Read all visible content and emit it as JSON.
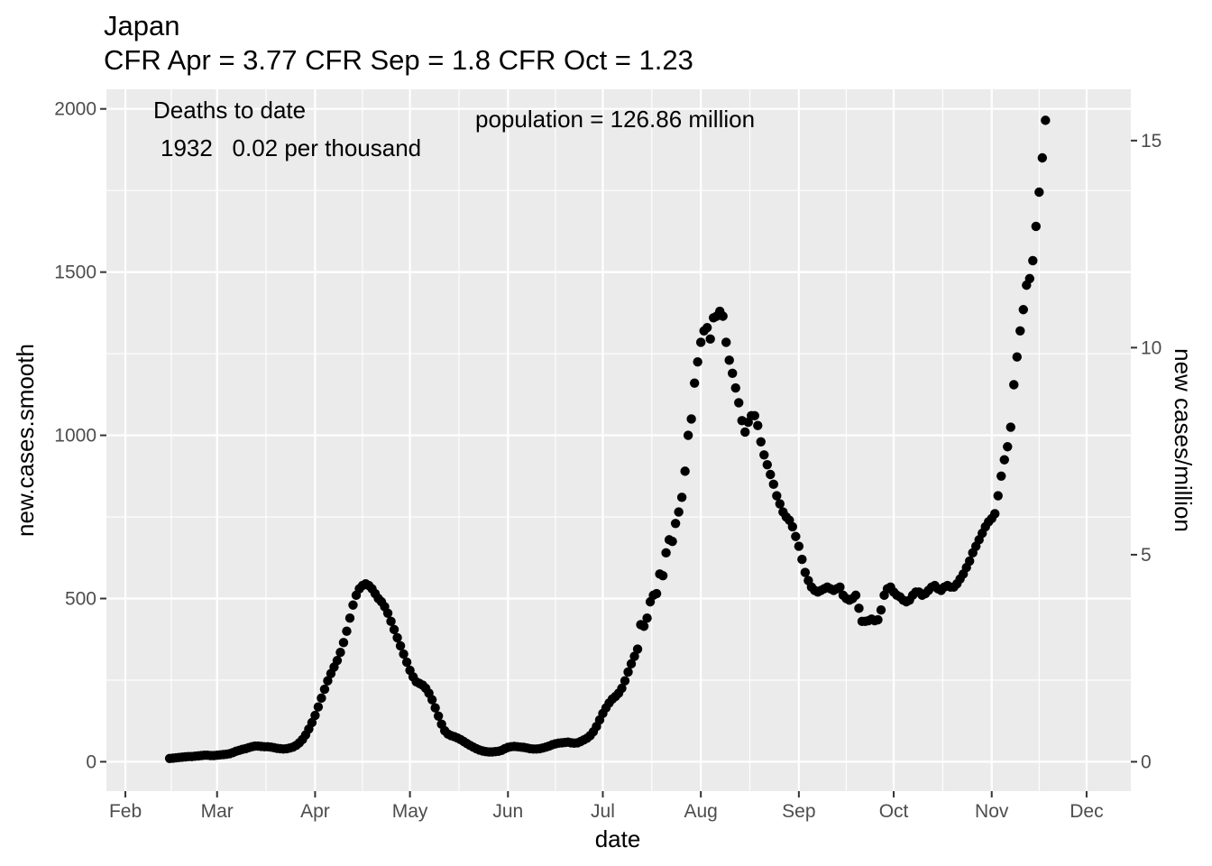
{
  "chart_data": {
    "type": "scatter",
    "title": "Japan",
    "subtitle": "CFR Apr = 3.77  CFR Sep = 1.8  CFR Oct = 1.23",
    "xlabel": "date",
    "ylabel": "new.cases.smooth",
    "y2label": "new cases/million",
    "annotations": {
      "deaths_title": "Deaths to date",
      "deaths_value": "1932   0.02 per thousand",
      "population": "population = 126.86 million"
    },
    "x_ticks": [
      {
        "date": "2020-02-01",
        "label": "Feb"
      },
      {
        "date": "2020-03-01",
        "label": "Mar"
      },
      {
        "date": "2020-04-01",
        "label": "Apr"
      },
      {
        "date": "2020-05-01",
        "label": "May"
      },
      {
        "date": "2020-06-01",
        "label": "Jun"
      },
      {
        "date": "2020-07-01",
        "label": "Jul"
      },
      {
        "date": "2020-08-01",
        "label": "Aug"
      },
      {
        "date": "2020-09-01",
        "label": "Sep"
      },
      {
        "date": "2020-10-01",
        "label": "Oct"
      },
      {
        "date": "2020-11-01",
        "label": "Nov"
      },
      {
        "date": "2020-12-01",
        "label": "Dec"
      }
    ],
    "y_ticks": [
      {
        "value": 0,
        "label": "0"
      },
      {
        "value": 500,
        "label": "500"
      },
      {
        "value": 1000,
        "label": "1000"
      },
      {
        "value": 1500,
        "label": "1500"
      },
      {
        "value": 2000,
        "label": "2000"
      }
    ],
    "y2_ticks": [
      {
        "value": 0,
        "label": "0"
      },
      {
        "value": 5,
        "label": "5"
      },
      {
        "value": 10,
        "label": "10"
      },
      {
        "value": 15,
        "label": "15"
      }
    ],
    "xlim": [
      "2020-01-26",
      "2020-12-15"
    ],
    "ylim": [
      -90,
      2060
    ],
    "y2lim": [
      -0.709,
      16.238
    ],
    "grid": true,
    "start_date": "2020-02-15",
    "values": [
      10,
      11,
      12,
      13,
      14,
      15,
      16,
      16,
      17,
      18,
      19,
      20,
      20,
      19,
      19,
      20,
      21,
      22,
      23,
      25,
      28,
      32,
      35,
      38,
      40,
      43,
      46,
      48,
      48,
      47,
      46,
      46,
      45,
      43,
      41,
      40,
      39,
      40,
      42,
      45,
      50,
      58,
      68,
      82,
      100,
      120,
      142,
      168,
      195,
      222,
      248,
      270,
      290,
      310,
      335,
      365,
      400,
      440,
      480,
      510,
      530,
      540,
      545,
      540,
      530,
      515,
      500,
      490,
      475,
      455,
      430,
      405,
      380,
      355,
      330,
      305,
      280,
      260,
      245,
      240,
      235,
      225,
      210,
      190,
      165,
      140,
      115,
      95,
      85,
      80,
      77,
      73,
      68,
      62,
      56,
      50,
      45,
      40,
      36,
      33,
      31,
      30,
      30,
      31,
      32,
      35,
      40,
      44,
      46,
      47,
      46,
      45,
      44,
      42,
      40,
      39,
      39,
      40,
      42,
      45,
      48,
      52,
      55,
      57,
      58,
      59,
      60,
      58,
      57,
      58,
      62,
      67,
      72,
      80,
      92,
      108,
      128,
      148,
      165,
      180,
      192,
      200,
      210,
      225,
      248,
      275,
      300,
      323,
      345,
      420,
      415,
      440,
      490,
      510,
      515,
      575,
      570,
      640,
      680,
      675,
      730,
      765,
      810,
      890,
      1000,
      1050,
      1160,
      1225,
      1285,
      1320,
      1330,
      1295,
      1360,
      1365,
      1380,
      1365,
      1285,
      1230,
      1190,
      1145,
      1100,
      1045,
      1010,
      1040,
      1060,
      1060,
      1030,
      980,
      940,
      910,
      880,
      850,
      815,
      790,
      765,
      750,
      740,
      720,
      690,
      660,
      620,
      580,
      555,
      535,
      525,
      520,
      525,
      530,
      535,
      530,
      525,
      530,
      535,
      510,
      500,
      495,
      500,
      510,
      470,
      430,
      430,
      432,
      437,
      432,
      435,
      465,
      510,
      530,
      535,
      520,
      510,
      505,
      495,
      490,
      495,
      510,
      520,
      520,
      510,
      515,
      525,
      535,
      540,
      530,
      525,
      535,
      540,
      535,
      535,
      545,
      560,
      575,
      595,
      615,
      640,
      660,
      680,
      700,
      720,
      735,
      745,
      760,
      815,
      875,
      925,
      965,
      1025,
      1155,
      1240,
      1320,
      1385,
      1460,
      1480,
      1535,
      1640,
      1745,
      1850,
      1965
    ]
  },
  "colors": {
    "panel_background": "#ebebeb",
    "grid_line": "#ffffff",
    "point": "#000000",
    "tick_label": "#4d4d4d",
    "tick_mark": "#333333"
  }
}
